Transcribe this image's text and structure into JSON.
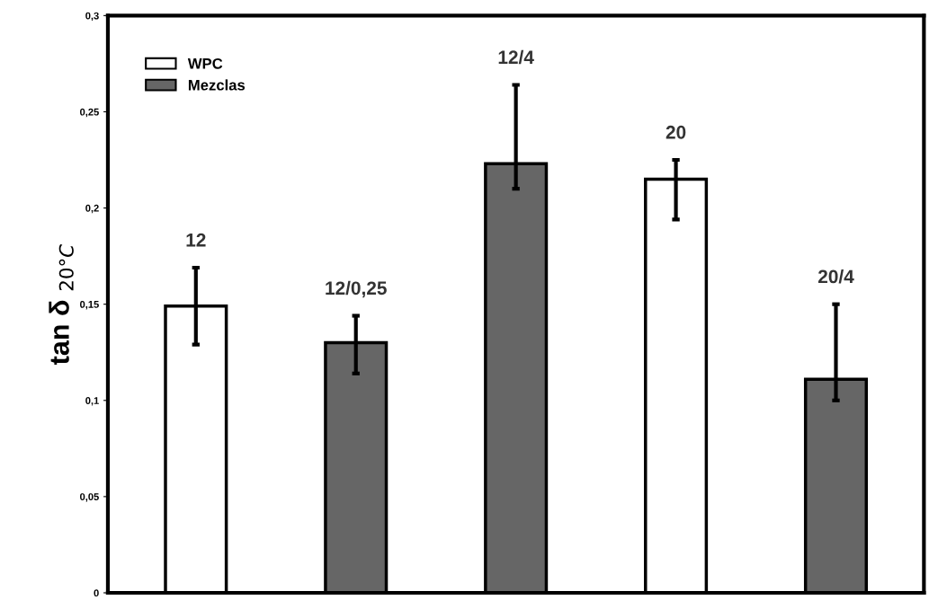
{
  "chart_data": {
    "type": "bar",
    "ylabel": "tan δ $_{20°C}$",
    "categories": [
      "12",
      "12/0,25",
      "12/4",
      "20",
      "20/4"
    ],
    "series": [
      {
        "name": "WPC",
        "color": "#ffffff",
        "values": [
          0.149,
          null,
          null,
          0.215,
          null
        ],
        "errors": [
          [
            0.129,
            0.169
          ],
          null,
          null,
          [
            0.194,
            0.225
          ],
          null
        ]
      },
      {
        "name": "Mezclas",
        "color": "#666666",
        "values": [
          null,
          0.13,
          0.223,
          null,
          0.111
        ],
        "errors": [
          null,
          [
            0.114,
            0.144
          ],
          [
            0.21,
            0.264
          ],
          null,
          [
            0.1,
            0.15
          ]
        ]
      }
    ],
    "ylim": [
      0,
      0.3
    ],
    "yticks": [
      0,
      {
        "value": 0.05,
        "label": "0,05"
      },
      {
        "value": 0.1,
        "label": "0,1"
      },
      {
        "value": 0.15,
        "label": "0,15"
      },
      {
        "value": 0.2,
        "label": "0,2"
      },
      {
        "value": 0.25,
        "label": "0,25"
      },
      {
        "value": 0.3,
        "label": "0,3"
      }
    ],
    "grid": false,
    "legend": "top left"
  }
}
